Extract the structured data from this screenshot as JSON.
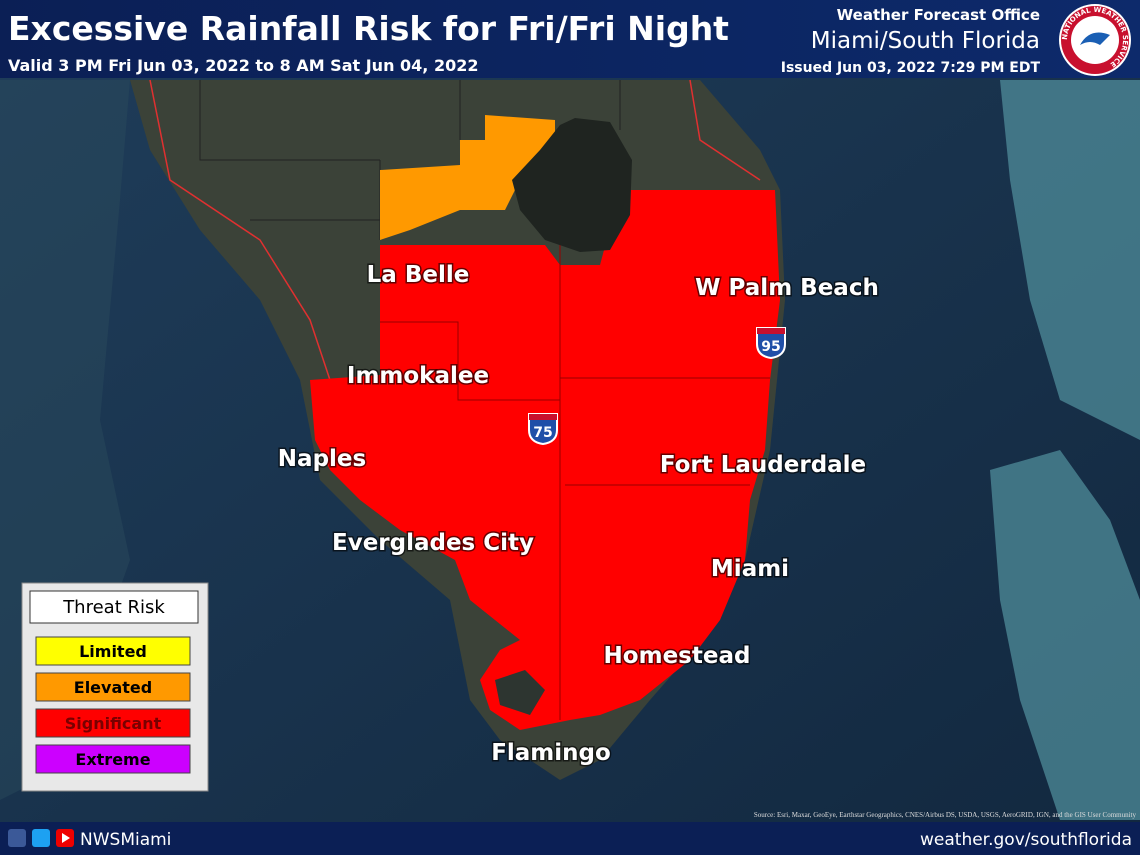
{
  "header": {
    "title": "Excessive Rainfall Risk for Fri/Fri Night",
    "valid": "Valid 3 PM Fri Jun 03, 2022 to 8 AM Sat Jun 04, 2022",
    "office": "Weather Forecast Office",
    "office_name": "Miami/South Florida",
    "issued": "Issued Jun 03, 2022 7:29 PM EDT",
    "logo_text": "NATIONAL WEATHER SERVICE"
  },
  "map": {
    "places": [
      "La Belle",
      "W Palm Beach",
      "Immokalee",
      "Naples",
      "Fort Lauderdale",
      "Everglades City",
      "Miami",
      "Homestead",
      "Flamingo"
    ],
    "shields": [
      "95",
      "75"
    ],
    "credit": "Source: Esri, Maxar, GeoEye, Earthstar Geographics, CNES/Airbus DS, USDA, USGS, AeroGRID, IGN, and the GIS User Community"
  },
  "legend": {
    "title": "Threat Risk",
    "items": [
      {
        "label": "Limited",
        "color": "#ffff00",
        "text_color": "#000000"
      },
      {
        "label": "Elevated",
        "color": "#ff9900",
        "text_color": "#000000"
      },
      {
        "label": "Significant",
        "color": "#ff0000",
        "text_color": "#7a0000"
      },
      {
        "label": "Extreme",
        "color": "#cc00ff",
        "text_color": "#000000"
      }
    ]
  },
  "footer": {
    "handle": "NWSMiami",
    "url": "weather.gov/southflorida"
  }
}
